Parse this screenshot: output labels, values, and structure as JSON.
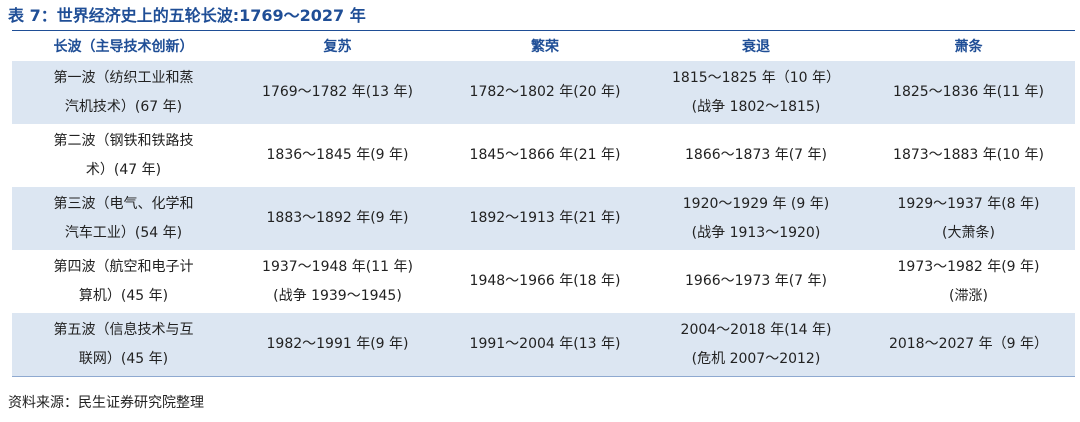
{
  "title": "表 7：世界经济史上的五轮长波:1769～2027 年",
  "table": {
    "header": [
      "长波（主导技术创新）",
      "复苏",
      "繁荣",
      "衰退",
      "萧条"
    ],
    "rows": [
      [
        [
          "第一波（纺织工业和蒸",
          "汽机技术）(67 年)"
        ],
        [
          "1769～1782 年(13 年)"
        ],
        [
          "1782～1802 年(20 年)"
        ],
        [
          "1815～1825 年（10 年）",
          "(战争 1802～1815)"
        ],
        [
          "1825～1836 年(11 年)"
        ]
      ],
      [
        [
          "第二波（钢铁和铁路技",
          "术）(47 年)"
        ],
        [
          "1836～1845 年(9 年)"
        ],
        [
          "1845～1866 年(21 年)"
        ],
        [
          "1866～1873 年(7 年)"
        ],
        [
          "1873～1883 年(10 年)"
        ]
      ],
      [
        [
          "第三波（电气、化学和",
          "汽车工业）(54 年)"
        ],
        [
          "1883～1892 年(9 年)"
        ],
        [
          "1892～1913 年(21 年)"
        ],
        [
          "1920～1929 年 (9 年)",
          "(战争 1913～1920)"
        ],
        [
          "1929～1937 年(8 年)",
          "(大萧条)"
        ]
      ],
      [
        [
          "第四波（航空和电子计",
          "算机）(45 年)"
        ],
        [
          "1937～1948 年(11 年)",
          "(战争 1939～1945)"
        ],
        [
          "1948～1966 年(18 年)"
        ],
        [
          "1966～1973 年(7 年)"
        ],
        [
          "1973～1982 年(9 年)",
          "(滞涨)"
        ]
      ],
      [
        [
          "第五波（信息技术与互",
          "联网）(45 年)"
        ],
        [
          "1982～1991 年(9 年)"
        ],
        [
          "1991～2004 年(13 年)"
        ],
        [
          "2004～2018 年(14 年)",
          "(危机 2007～2012)"
        ],
        [
          "2018～2027 年（9 年）"
        ]
      ]
    ]
  },
  "source": "资料来源：民生证券研究院整理"
}
